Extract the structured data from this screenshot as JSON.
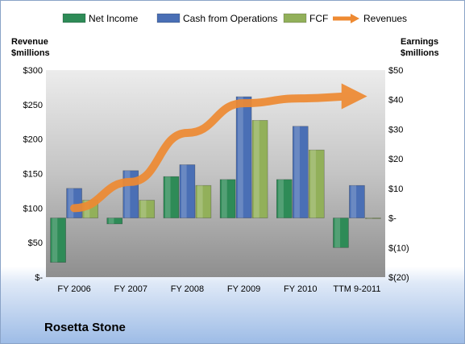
{
  "company_name": "Rosetta Stone",
  "chart_data": {
    "type": "bar",
    "categories": [
      "FY 2006",
      "FY 2007",
      "FY 2008",
      "FY 2009",
      "FY 2010",
      "TTM 9-2011"
    ],
    "series": [
      {
        "name": "Net Income",
        "axis": "right",
        "values": [
          -15,
          -2,
          14,
          13,
          13,
          -10
        ],
        "color": "#2e8b57"
      },
      {
        "name": "Cash from Operations",
        "axis": "right",
        "values": [
          10,
          16,
          18,
          41,
          31,
          11
        ],
        "color": "#4a6fb5"
      },
      {
        "name": "FCF",
        "axis": "right",
        "values": [
          6,
          6,
          11,
          33,
          23,
          0
        ],
        "color": "#92b05a"
      }
    ],
    "line_series": {
      "name": "Revenues",
      "axis": "left",
      "values": [
        100,
        138,
        209,
        252,
        259,
        262
      ],
      "color": "#ee8a32"
    },
    "ylabel_left": "Revenue $millions",
    "ylabel_right": "Earnings $millions",
    "ylim_left": [
      0,
      300
    ],
    "ylim_right": [
      -20,
      50
    ],
    "yticks_left": [
      "$-",
      "$50",
      "$100",
      "$150",
      "$200",
      "$250",
      "$300"
    ],
    "yticks_right": [
      "$(20)",
      "$(10)",
      "$-",
      "$10",
      "$20",
      "$30",
      "$40",
      "$50"
    ],
    "legend_position": "top",
    "grid": false
  }
}
